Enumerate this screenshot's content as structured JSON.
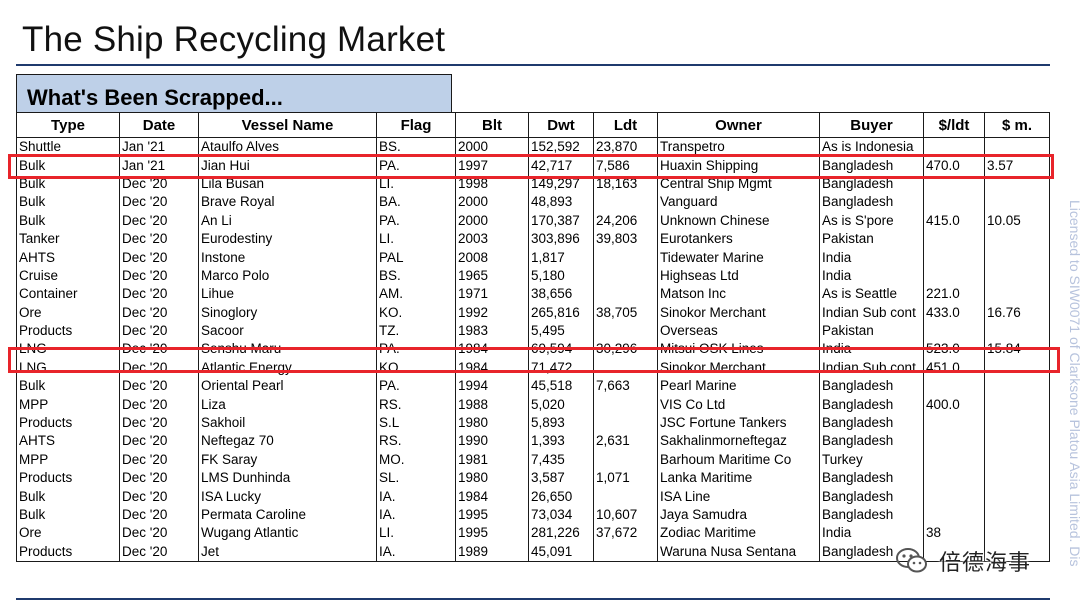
{
  "title": "The Ship Recycling Market",
  "section_title": "What's Been Scrapped...",
  "table": {
    "columns": [
      "Type",
      "Date",
      "Vessel Name",
      "Flag",
      "Blt",
      "Dwt",
      "Ldt",
      "Owner",
      "Buyer",
      "$/ldt",
      "$ m."
    ],
    "rows": [
      [
        "Shuttle",
        "Jan '21",
        "Ataulfo Alves",
        "BS.",
        "2000",
        "152,592",
        "23,870",
        "Transpetro",
        "As is Indonesia",
        "",
        ""
      ],
      [
        "Bulk",
        "Jan '21",
        "Jian Hui",
        "PA.",
        "1997",
        "42,717",
        "7,586",
        "Huaxin Shipping",
        "Bangladesh",
        "470.0",
        "3.57"
      ],
      [
        "Bulk",
        "Dec '20",
        "Lila Busan",
        "LI.",
        "1998",
        "149,297",
        "18,163",
        "Central Ship Mgmt",
        "Bangladesh",
        "",
        ""
      ],
      [
        "Bulk",
        "Dec '20",
        "Brave Royal",
        "BA.",
        "2000",
        "48,893",
        "",
        "Vanguard",
        "Bangladesh",
        "",
        ""
      ],
      [
        "Bulk",
        "Dec '20",
        "An Li",
        "PA.",
        "2000",
        "170,387",
        "24,206",
        "Unknown Chinese",
        "As is S'pore",
        "415.0",
        "10.05"
      ],
      [
        "Tanker",
        "Dec '20",
        "Eurodestiny",
        "LI.",
        "2003",
        "303,896",
        "39,803",
        "Eurotankers",
        "Pakistan",
        "",
        ""
      ],
      [
        "AHTS",
        "Dec '20",
        "Instone",
        "PAL",
        "2008",
        "1,817",
        "",
        "Tidewater Marine",
        "India",
        "",
        ""
      ],
      [
        "Cruise",
        "Dec '20",
        "Marco Polo",
        "BS.",
        "1965",
        "5,180",
        "",
        "Highseas Ltd",
        "India",
        "",
        ""
      ],
      [
        "Container",
        "Dec '20",
        "Lihue",
        "AM.",
        "1971",
        "38,656",
        "",
        "Matson Inc",
        "As is Seattle",
        "221.0",
        ""
      ],
      [
        "Ore",
        "Dec '20",
        "Sinoglory",
        "KO.",
        "1992",
        "265,816",
        "38,705",
        "Sinokor Merchant",
        "Indian Sub cont",
        "433.0",
        "16.76"
      ],
      [
        "Products",
        "Dec '20",
        "Sacoor",
        "TZ.",
        "1983",
        "5,495",
        "",
        "Overseas",
        "Pakistan",
        "",
        ""
      ],
      [
        "LNG",
        "Dec '20",
        "Senshu Maru",
        "PA.",
        "1984",
        "69,594",
        "30,296",
        "Mitsui OSK Lines",
        "India",
        "523.0",
        "15.84"
      ],
      [
        "LNG",
        "Dec '20",
        "Atlantic Energy",
        "KO.",
        "1984",
        "71,472",
        "",
        "Sinokor Merchant",
        "Indian Sub cont",
        "451.0",
        ""
      ],
      [
        "Bulk",
        "Dec '20",
        "Oriental Pearl",
        "PA.",
        "1994",
        "45,518",
        "7,663",
        "Pearl Marine",
        "Bangladesh",
        "",
        ""
      ],
      [
        "MPP",
        "Dec '20",
        "Liza",
        "RS.",
        "1988",
        "5,020",
        "",
        "VIS Co Ltd",
        "Bangladesh",
        "400.0",
        ""
      ],
      [
        "Products",
        "Dec '20",
        "Sakhoil",
        "S.L",
        "1980",
        "5,893",
        "",
        "JSC Fortune Tankers",
        "Bangladesh",
        "",
        ""
      ],
      [
        "AHTS",
        "Dec '20",
        "Neftegaz  70",
        "RS.",
        "1990",
        "1,393",
        "2,631",
        "Sakhalinmorneftegaz",
        "Bangladesh",
        "",
        ""
      ],
      [
        "MPP",
        "Dec '20",
        "FK Saray",
        "MO.",
        "1981",
        "7,435",
        "",
        "Barhoum Maritime Co",
        "Turkey",
        "",
        ""
      ],
      [
        "Products",
        "Dec '20",
        "LMS Dunhinda",
        "SL.",
        "1980",
        "3,587",
        "1,071",
        "Lanka Maritime",
        "Bangladesh",
        "",
        ""
      ],
      [
        "Bulk",
        "Dec '20",
        "ISA Lucky",
        "IA.",
        "1984",
        "26,650",
        "",
        "ISA Line",
        "Bangladesh",
        "",
        ""
      ],
      [
        "Bulk",
        "Dec '20",
        "Permata Caroline",
        "IA.",
        "1995",
        "73,034",
        "10,607",
        "Jaya Samudra",
        "Bangladesh",
        "",
        ""
      ],
      [
        "Ore",
        "Dec '20",
        "Wugang Atlantic",
        "LI.",
        "1995",
        "281,226",
        "37,672",
        "Zodiac Maritime",
        "India",
        "38",
        ""
      ],
      [
        "Products",
        "Dec '20",
        "Jet",
        "IA.",
        "1989",
        "45,091",
        "",
        "Waruna Nusa Sentana",
        "Bangladesh",
        "",
        ""
      ]
    ]
  },
  "watermark": "Licensed to SIW0071 of Clarksone Platou Asia Limited. Dis",
  "wechat_label": "倍德海事",
  "highlight_color": "#e8242a",
  "header_fill": "#bed0e8",
  "icons": {
    "wechat": "wechat-icon"
  }
}
